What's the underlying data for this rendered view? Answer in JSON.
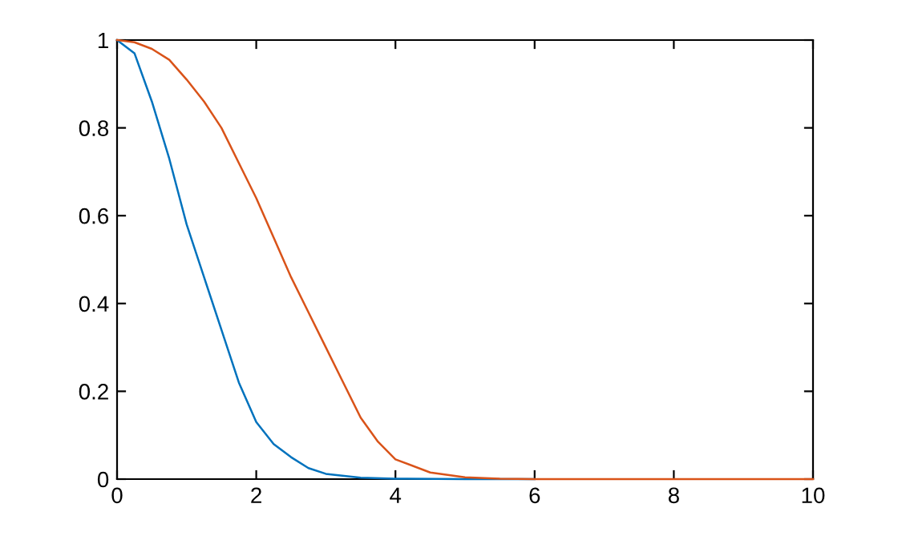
{
  "chart_data": {
    "type": "line",
    "xlim": [
      0,
      10
    ],
    "ylim": [
      0,
      1
    ],
    "xticks": [
      0,
      2,
      4,
      6,
      8,
      10
    ],
    "yticks": [
      0,
      0.2,
      0.4,
      0.6,
      0.8,
      1
    ],
    "grid": false,
    "legend": false,
    "line_style": "solid",
    "series": [
      {
        "color": "#0072bd",
        "x": [
          0,
          0.25,
          0.5,
          0.75,
          1,
          1.25,
          1.5,
          1.75,
          2,
          2.25,
          2.5,
          2.75,
          3,
          3.5,
          4,
          5,
          6
        ],
        "values": [
          1,
          0.97,
          0.86,
          0.73,
          0.58,
          0.46,
          0.34,
          0.22,
          0.13,
          0.08,
          0.05,
          0.025,
          0.012,
          0.003,
          0.001,
          0,
          0
        ]
      },
      {
        "color": "#d95319",
        "x": [
          0,
          0.25,
          0.5,
          0.75,
          1,
          1.25,
          1.5,
          1.75,
          2,
          2.25,
          2.5,
          2.75,
          3,
          3.25,
          3.5,
          3.75,
          4,
          4.5,
          5,
          5.5,
          6,
          8,
          10
        ],
        "values": [
          1,
          0.995,
          0.98,
          0.955,
          0.91,
          0.86,
          0.8,
          0.72,
          0.64,
          0.55,
          0.46,
          0.38,
          0.3,
          0.22,
          0.14,
          0.085,
          0.045,
          0.015,
          0.004,
          0.001,
          0,
          0,
          0
        ]
      }
    ]
  }
}
